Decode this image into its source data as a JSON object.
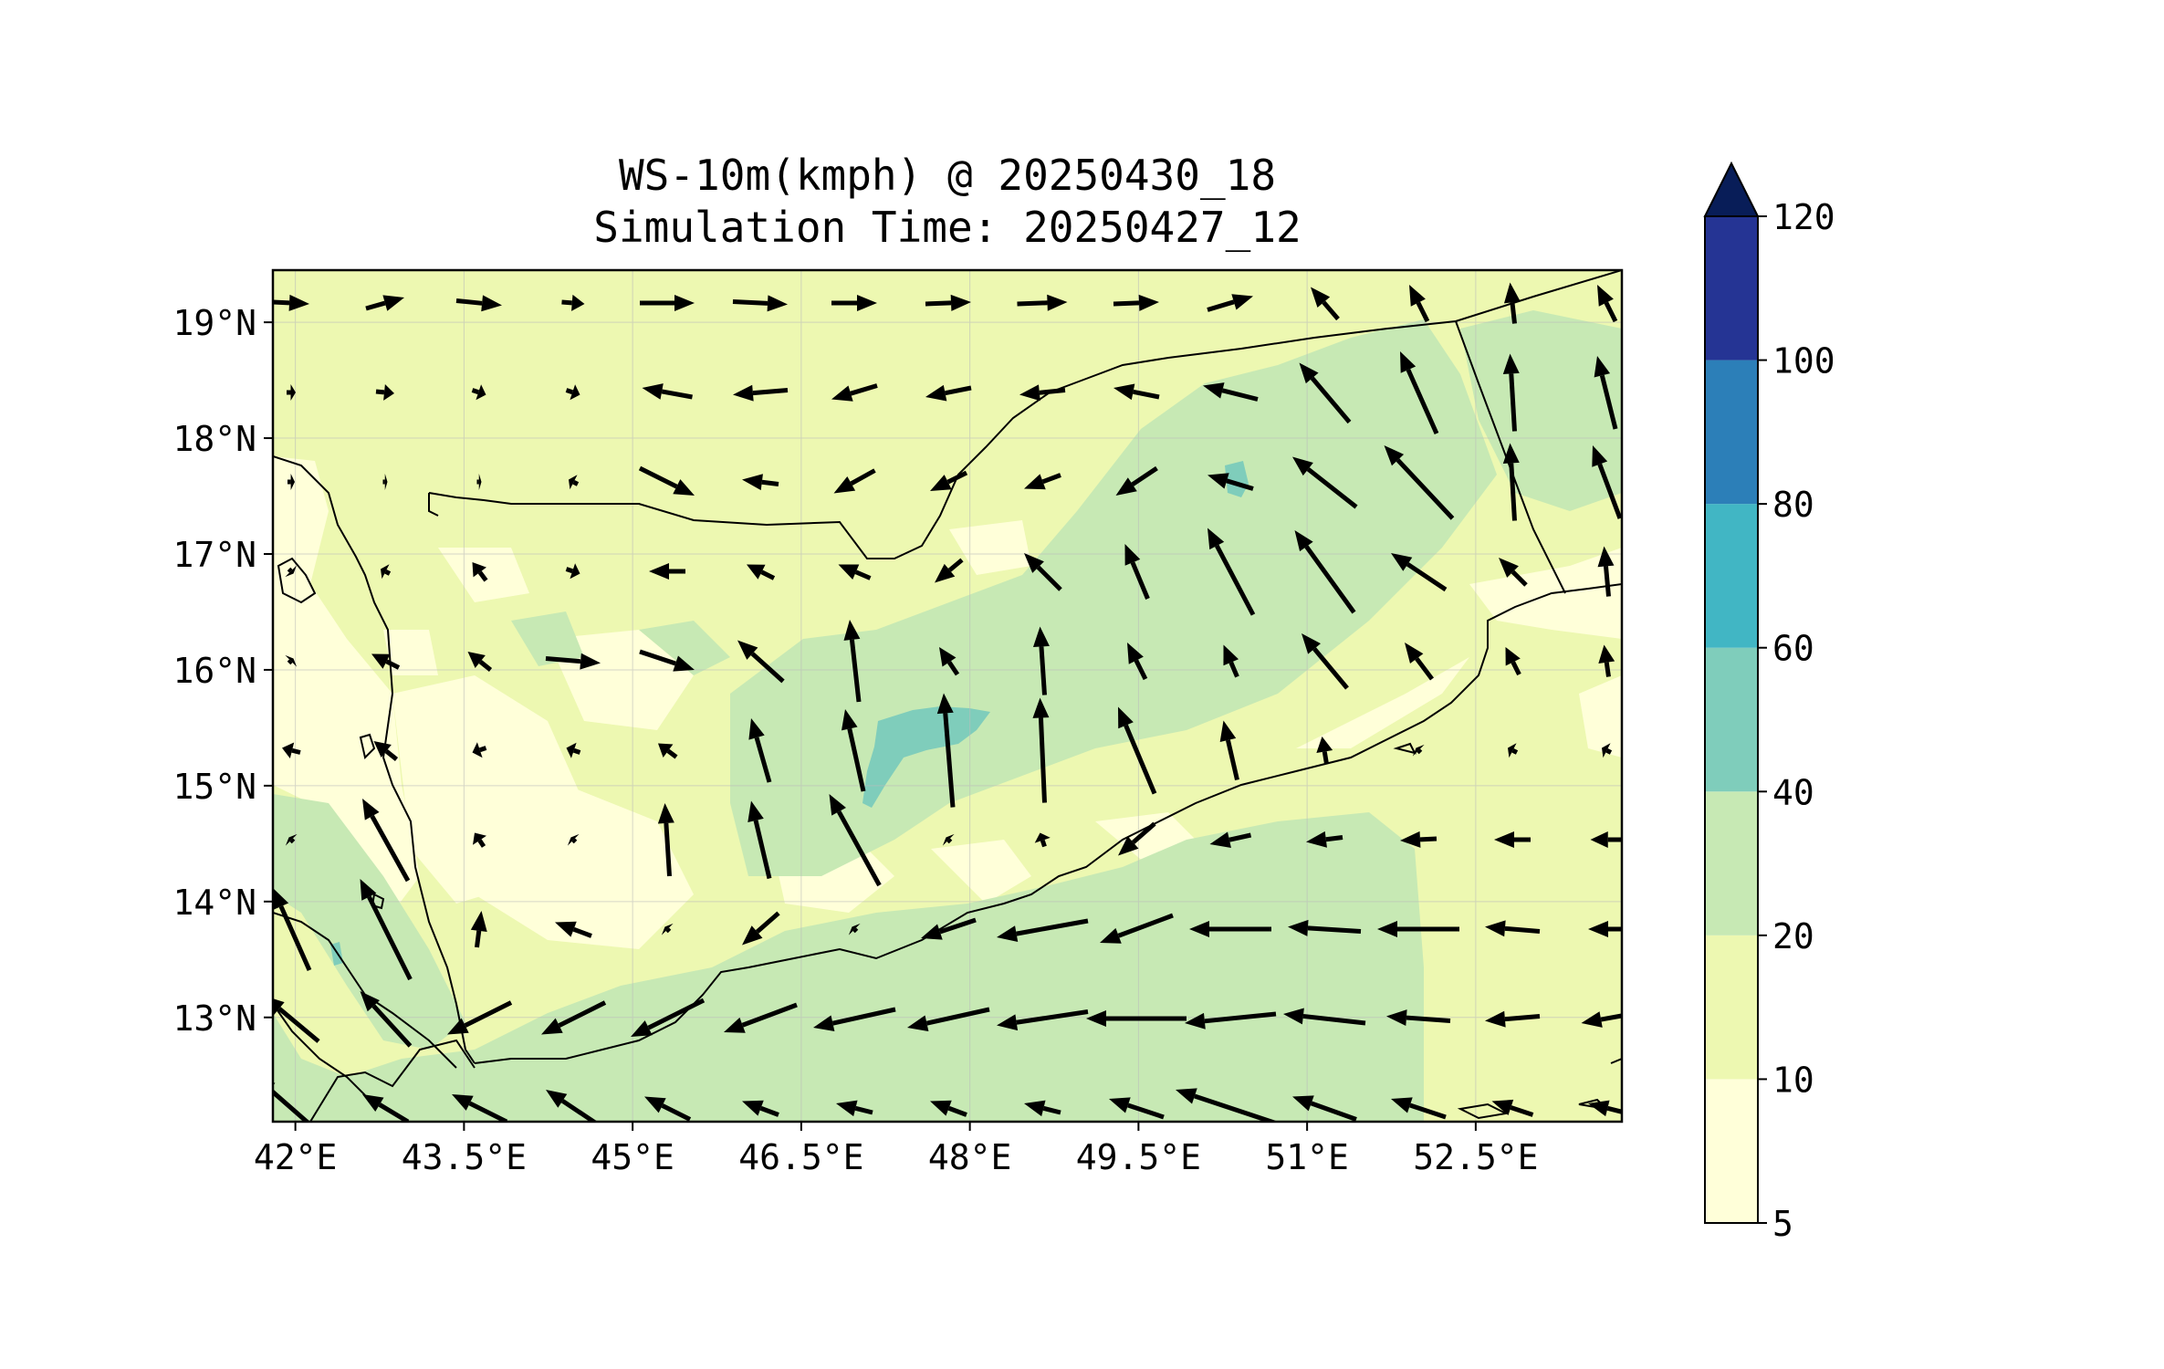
{
  "title": {
    "line1": "WS-10m(kmph) @ 20250430_18",
    "line2": "Simulation Time: 20250427_12"
  },
  "map": {
    "lon_range": [
      41.8,
      53.8
    ],
    "lat_range": [
      12.1,
      19.45
    ],
    "lon_ticks": [
      {
        "value": 42,
        "label": "42°E"
      },
      {
        "value": 43.5,
        "label": "43.5°E"
      },
      {
        "value": 45,
        "label": "45°E"
      },
      {
        "value": 46.5,
        "label": "46.5°E"
      },
      {
        "value": 48,
        "label": "48°E"
      },
      {
        "value": 49.5,
        "label": "49.5°E"
      },
      {
        "value": 51,
        "label": "51°E"
      },
      {
        "value": 52.5,
        "label": "52.5°E"
      }
    ],
    "lat_ticks": [
      {
        "value": 19,
        "label": "19°N"
      },
      {
        "value": 18,
        "label": "18°N"
      },
      {
        "value": 17,
        "label": "17°N"
      },
      {
        "value": 16,
        "label": "16°N"
      },
      {
        "value": 15,
        "label": "15°N"
      },
      {
        "value": 14,
        "label": "14°N"
      },
      {
        "value": 13,
        "label": "13°N"
      }
    ],
    "grid": true
  },
  "colorbar": {
    "levels": [
      5,
      10,
      20,
      40,
      60,
      80,
      100,
      120
    ],
    "labels": [
      "5",
      "10",
      "20",
      "40",
      "60",
      "80",
      "100",
      "120"
    ],
    "colors": [
      "#ffffd9",
      "#edf8b1",
      "#c7e9b4",
      "#7fcdbb",
      "#41b6c4",
      "#2c7fb8",
      "#253494"
    ],
    "extend_color": "#081d58",
    "extend": "max"
  },
  "colors": {
    "land_base": "#edf8b1",
    "sea": "#c7e9b4",
    "calm": "#ffffd9",
    "strong": "#7fcdbb",
    "coast": "#000000",
    "arrow": "#000000"
  }
}
